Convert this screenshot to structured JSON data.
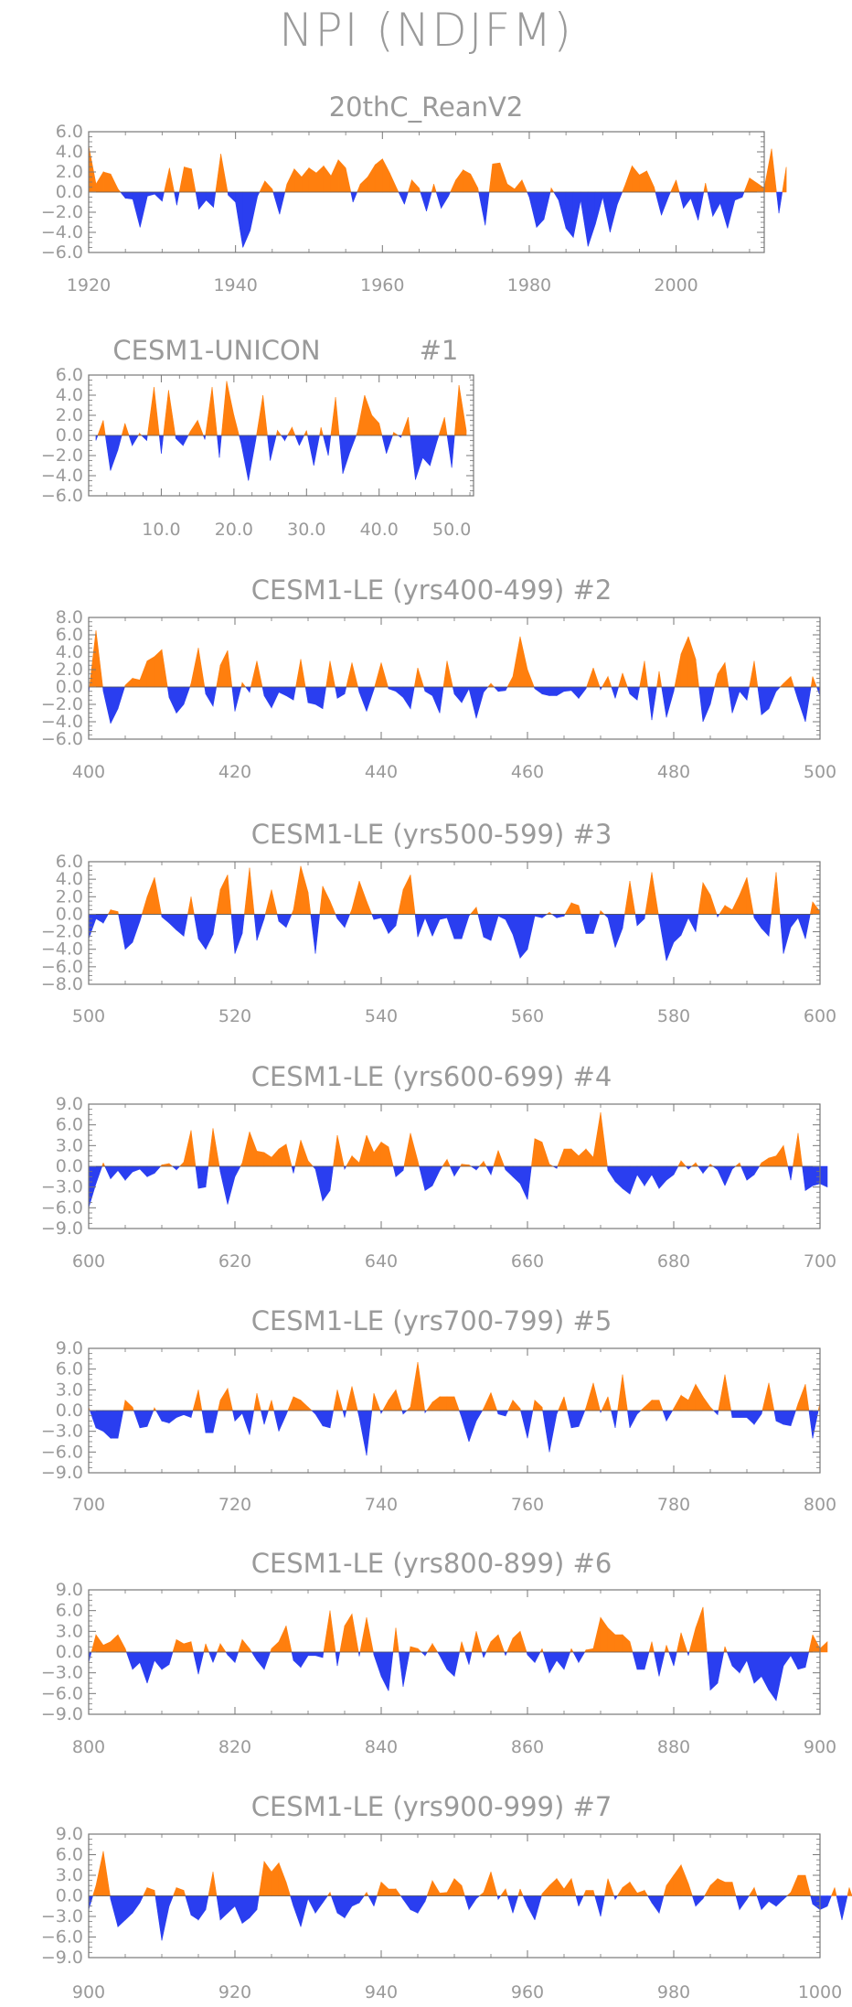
{
  "title": "NPI (NDJFM)",
  "colors": {
    "positive": "#ff7f0e",
    "negative": "#2a3ef0",
    "frame": "#777777",
    "text": "#9a9a9a"
  },
  "chart_data": [
    {
      "type": "area",
      "title": "20thC_ReanV2",
      "x_start": 1920,
      "x_step": 1,
      "xlim": [
        1920,
        2012
      ],
      "ylim": [
        -6,
        6
      ],
      "xticks": [
        1920,
        1940,
        1960,
        1980,
        2000
      ],
      "xtick_labels": [
        "1920",
        "1940",
        "1960",
        "1980",
        "2000"
      ],
      "yticks": [
        6,
        4,
        2,
        0,
        -2,
        -4,
        -6
      ],
      "ytick_labels": [
        "6.0",
        "4.0",
        "2.0",
        "0.0",
        "−2.0",
        "−4.0",
        "−6.0"
      ],
      "values": [
        4.6,
        0.8,
        2.0,
        1.8,
        0.3,
        -0.6,
        -0.7,
        -3.5,
        -0.4,
        -0.2,
        -0.9,
        2.4,
        -1.3,
        2.5,
        2.3,
        -1.7,
        -0.8,
        -1.5,
        3.8,
        -0.3,
        -1.0,
        -5.5,
        -3.8,
        -0.4,
        1.1,
        0.3,
        -2.2,
        0.8,
        2.3,
        1.5,
        2.4,
        1.9,
        2.6,
        1.6,
        3.2,
        2.4,
        -1.0,
        0.8,
        1.5,
        2.7,
        3.3,
        1.9,
        0.3,
        -1.2,
        1.2,
        0.4,
        -1.9,
        0.8,
        -1.6,
        -0.4,
        1.2,
        2.2,
        1.8,
        0.4,
        -3.3,
        2.8,
        2.9,
        0.8,
        0.3,
        1.2,
        -0.5,
        -3.5,
        -2.7,
        0.4,
        -0.8,
        -3.6,
        -4.5,
        -0.8,
        -5.4,
        -3.2,
        -0.5,
        -4.0,
        -1.2,
        0.6,
        2.6,
        1.7,
        2.1,
        0.5,
        -2.3,
        -0.4,
        1.2,
        -1.6,
        -0.6,
        -2.8,
        0.9,
        -2.4,
        -1.1,
        -3.6,
        -0.8,
        -0.5,
        1.4,
        0.9,
        0.4,
        4.3,
        -2.1,
        2.5
      ]
    },
    {
      "type": "area",
      "title": "CESM1-UNICON",
      "run_label": "#1",
      "x_start": 1,
      "x_step": 1,
      "xlim": [
        0,
        53
      ],
      "ylim": [
        -6,
        6
      ],
      "xticks": [
        10,
        20,
        30,
        40,
        50
      ],
      "xtick_labels": [
        "10.0",
        "20.0",
        "30.0",
        "40.0",
        "50.0"
      ],
      "yticks": [
        6,
        4,
        2,
        0,
        -2,
        -4,
        -6
      ],
      "ytick_labels": [
        "6.0",
        "4.0",
        "2.0",
        "0.0",
        "−2.0",
        "−4.0",
        "−6.0"
      ],
      "values": [
        -0.5,
        1.5,
        -3.5,
        -1.5,
        1.2,
        -1.0,
        0.2,
        -0.5,
        4.8,
        -1.8,
        4.5,
        -0.3,
        -1.0,
        0.4,
        1.5,
        -0.4,
        4.8,
        -2.2,
        5.4,
        2.0,
        -0.8,
        -4.5,
        -0.5,
        4.0,
        -2.5,
        0.5,
        -0.5,
        0.8,
        -1.0,
        0.5,
        -3.0,
        0.8,
        -2.0,
        3.8,
        -3.8,
        -1.6,
        0.3,
        4.0,
        2.0,
        1.2,
        -1.8,
        0.3,
        -0.2,
        1.8,
        -4.4,
        -2.2,
        -3.0,
        -0.5,
        1.8,
        -3.2,
        5.0,
        0.5
      ]
    },
    {
      "type": "area",
      "title": "CESM1-LE (yrs400-499)",
      "run_label": "#2",
      "x_start": 400,
      "x_step": 1,
      "xlim": [
        400,
        500
      ],
      "ylim": [
        -6,
        8
      ],
      "xticks": [
        400,
        420,
        440,
        460,
        480,
        500
      ],
      "xtick_labels": [
        "400",
        "420",
        "440",
        "460",
        "480",
        "500"
      ],
      "yticks": [
        8,
        6,
        4,
        2,
        0,
        -2,
        -4,
        -6
      ],
      "ytick_labels": [
        "8.0",
        "6.0",
        "4.0",
        "2.0",
        "0.0",
        "−2.0",
        "−4.0",
        "−6.0"
      ],
      "values": [
        -0.8,
        6.5,
        -0.5,
        -4.2,
        -2.5,
        0.2,
        1.0,
        0.8,
        3.0,
        3.5,
        4.3,
        -1.2,
        -3.0,
        -2.0,
        0.4,
        4.5,
        -0.8,
        -2.2,
        2.5,
        4.2,
        -2.8,
        0.5,
        -0.6,
        3.0,
        -1.0,
        -2.4,
        -0.6,
        -1.0,
        -1.5,
        3.2,
        -1.8,
        -2.0,
        -2.5,
        3.0,
        -1.3,
        -0.8,
        2.8,
        -0.6,
        -2.8,
        -0.3,
        2.8,
        -0.2,
        -0.5,
        -1.2,
        -2.5,
        2.2,
        -0.5,
        -1.0,
        -3.0,
        3.0,
        -0.8,
        -1.8,
        -0.2,
        -3.6,
        -0.6,
        0.4,
        -0.5,
        -0.4,
        1.2,
        5.8,
        2.0,
        -0.2,
        -0.8,
        -1.0,
        -1.0,
        -0.5,
        -0.4,
        -1.3,
        -0.2,
        2.2,
        -0.3,
        1.2,
        -1.3,
        1.6,
        -0.8,
        -1.5,
        3.0,
        -3.8,
        1.8,
        -3.5,
        -0.5,
        3.8,
        5.8,
        3.2,
        -4.0,
        -2.0,
        1.5,
        2.8,
        -3.0,
        -0.5,
        -1.5,
        3.0,
        -3.2,
        -2.5,
        -0.5,
        0.4,
        1.2,
        -1.5,
        -4.0,
        1.2,
        -1.0
      ]
    },
    {
      "type": "area",
      "title": "CESM1-LE (yrs500-599)",
      "run_label": "#3",
      "x_start": 500,
      "x_step": 1,
      "xlim": [
        500,
        600
      ],
      "ylim": [
        -8,
        6
      ],
      "xticks": [
        500,
        520,
        540,
        560,
        580,
        600
      ],
      "xtick_labels": [
        "500",
        "520",
        "540",
        "560",
        "580",
        "600"
      ],
      "yticks": [
        6,
        4,
        2,
        0,
        -2,
        -4,
        -6,
        -8
      ],
      "ytick_labels": [
        "6.0",
        "4.0",
        "2.0",
        "0.0",
        "−2.0",
        "−4.0",
        "−6.0",
        "−8.0"
      ],
      "values": [
        -2.8,
        -0.5,
        -1.0,
        0.5,
        0.3,
        -4.0,
        -3.2,
        -0.8,
        2.0,
        4.2,
        -0.3,
        -1.0,
        -1.8,
        -2.5,
        2.0,
        -2.8,
        -4.0,
        -2.3,
        2.8,
        4.5,
        -4.5,
        -2.2,
        5.3,
        -3.0,
        -0.5,
        2.8,
        -0.8,
        -1.5,
        0.5,
        5.5,
        2.5,
        -4.5,
        3.2,
        1.5,
        -0.5,
        -1.5,
        0.6,
        3.8,
        1.5,
        -0.6,
        -0.4,
        -2.2,
        -1.3,
        2.8,
        4.5,
        -2.6,
        -0.4,
        -2.5,
        -0.6,
        -0.4,
        -2.8,
        -2.8,
        -0.2,
        0.8,
        -2.6,
        -3.0,
        -0.2,
        -0.6,
        -2.3,
        -5.0,
        -4.0,
        -0.2,
        -0.4,
        0.2,
        -0.4,
        -0.2,
        1.3,
        1.0,
        -2.2,
        -2.2,
        0.4,
        -0.4,
        -3.8,
        -1.6,
        3.8,
        -1.3,
        -0.5,
        4.8,
        -0.5,
        -5.3,
        -3.2,
        -2.4,
        -0.4,
        -2.0,
        3.6,
        2.2,
        -0.3,
        1.0,
        0.5,
        2.2,
        4.2,
        -0.4,
        -1.6,
        -2.5,
        4.8,
        -4.5,
        -1.5,
        -0.4,
        -2.8,
        1.4,
        0.3
      ]
    },
    {
      "type": "area",
      "title": "CESM1-LE (yrs600-699)",
      "run_label": "#4",
      "x_start": 600,
      "x_step": 1,
      "xlim": [
        600,
        700
      ],
      "ylim": [
        -9,
        9
      ],
      "xticks": [
        600,
        620,
        640,
        660,
        680,
        700
      ],
      "xtick_labels": [
        "600",
        "620",
        "640",
        "660",
        "680",
        "700"
      ],
      "yticks": [
        9,
        6,
        3,
        0,
        -3,
        -6,
        -9
      ],
      "ytick_labels": [
        "9.0",
        "6.0",
        "3.0",
        "0.0",
        "−3.0",
        "−6.0",
        "−9.0"
      ],
      "values": [
        -6.0,
        -2.5,
        0.5,
        -1.8,
        -0.6,
        -2.0,
        -0.8,
        -0.4,
        -1.5,
        -1.0,
        0.2,
        0.4,
        -0.5,
        0.6,
        5.2,
        -3.2,
        -3.0,
        5.5,
        -0.8,
        -5.5,
        -1.5,
        0.5,
        5.0,
        2.2,
        2.0,
        1.3,
        2.5,
        3.2,
        -1.0,
        3.8,
        0.8,
        -0.4,
        -5.0,
        -3.5,
        4.5,
        -0.4,
        1.5,
        0.5,
        4.5,
        2.0,
        3.5,
        2.8,
        -1.5,
        -0.6,
        4.8,
        0.8,
        -3.5,
        -2.8,
        -0.6,
        1.0,
        -1.4,
        0.3,
        0.2,
        -0.5,
        0.7,
        -1.2,
        2.3,
        -0.5,
        -1.5,
        -2.5,
        -4.8,
        4.0,
        3.5,
        0.3,
        -0.3,
        2.5,
        2.5,
        1.5,
        2.5,
        1.3,
        7.8,
        -0.6,
        -2.2,
        -3.2,
        -4.0,
        -1.2,
        -2.8,
        -1.2,
        -3.2,
        -2.0,
        -1.2,
        0.8,
        -0.4,
        0.5,
        -1.0,
        0.3,
        -0.5,
        -2.8,
        -0.4,
        0.5,
        -2.0,
        -1.2,
        0.5,
        1.2,
        1.5,
        3.0,
        -2.0,
        4.8,
        -3.5,
        -2.8,
        -2.5,
        -3.0
      ]
    },
    {
      "type": "area",
      "title": "CESM1-LE (yrs700-799)",
      "run_label": "#5",
      "x_start": 700,
      "x_step": 1,
      "xlim": [
        700,
        800
      ],
      "ylim": [
        -9,
        9
      ],
      "xticks": [
        700,
        720,
        740,
        760,
        780,
        800
      ],
      "xtick_labels": [
        "700",
        "720",
        "740",
        "760",
        "780",
        "800"
      ],
      "yticks": [
        9,
        6,
        3,
        0,
        -3,
        -6,
        -9
      ],
      "ytick_labels": [
        "9.0",
        "6.0",
        "3.0",
        "0.0",
        "−3.0",
        "−6.0",
        "−9.0"
      ],
      "values": [
        0.5,
        -2.5,
        -3.0,
        -4.0,
        -4.0,
        1.5,
        0.5,
        -2.5,
        -2.3,
        0.4,
        -1.5,
        -1.8,
        -1.0,
        -0.6,
        -1.0,
        3.0,
        -3.2,
        -3.2,
        1.5,
        3.2,
        -1.5,
        -0.4,
        -3.5,
        2.5,
        -2.0,
        1.5,
        -3.0,
        -0.6,
        2.0,
        1.5,
        0.5,
        -0.5,
        -2.2,
        -2.5,
        3.0,
        -1.0,
        3.5,
        -1.0,
        -6.5,
        2.5,
        -0.4,
        1.5,
        3.0,
        -0.5,
        0.5,
        7.0,
        -0.3,
        1.2,
        2.0,
        2.0,
        2.0,
        -1.0,
        -4.5,
        -1.5,
        0.3,
        2.6,
        -0.5,
        -0.8,
        1.5,
        0.3,
        -4.0,
        1.5,
        0.5,
        -6.0,
        -0.5,
        2.0,
        -2.5,
        -2.3,
        0.4,
        4.0,
        -0.3,
        2.0,
        -2.5,
        5.2,
        -2.5,
        -0.5,
        0.5,
        1.5,
        1.5,
        -1.5,
        0.3,
        2.2,
        1.5,
        3.8,
        2.0,
        0.5,
        -0.6,
        5.2,
        -1.0,
        -1.0,
        -1.0,
        -2.0,
        -0.5,
        4.0,
        -1.5,
        -2.0,
        -2.2,
        1.0,
        3.8,
        -4.0,
        1.2
      ]
    },
    {
      "type": "area",
      "title": "CESM1-LE (yrs800-899)",
      "run_label": "#6",
      "x_start": 800,
      "x_step": 1,
      "xlim": [
        800,
        900
      ],
      "ylim": [
        -9,
        9
      ],
      "xticks": [
        800,
        820,
        840,
        860,
        880,
        900
      ],
      "xtick_labels": [
        "800",
        "820",
        "840",
        "860",
        "880",
        "900"
      ],
      "yticks": [
        9,
        6,
        3,
        0,
        -3,
        -6,
        -9
      ],
      "ytick_labels": [
        "9.0",
        "6.0",
        "3.0",
        "0.0",
        "−3.0",
        "−6.0",
        "−9.0"
      ],
      "values": [
        -1.5,
        2.5,
        1.0,
        1.5,
        2.5,
        0.5,
        -2.5,
        -1.5,
        -4.5,
        -1.2,
        -2.5,
        -1.8,
        1.8,
        1.2,
        1.5,
        -3.2,
        1.2,
        -1.5,
        1.2,
        -0.4,
        -1.5,
        1.8,
        0.5,
        -1.2,
        -2.5,
        0.5,
        1.5,
        3.8,
        -1.2,
        -2.2,
        -0.5,
        -0.5,
        -0.8,
        6.0,
        -2.0,
        3.8,
        5.5,
        -0.6,
        5.0,
        -0.4,
        -3.5,
        -5.6,
        3.5,
        -5.0,
        0.8,
        0.5,
        -0.5,
        1.2,
        -0.5,
        -2.5,
        -3.5,
        1.5,
        -1.8,
        3.0,
        -0.8,
        1.5,
        2.5,
        -0.5,
        2.0,
        3.0,
        -0.4,
        -1.5,
        0.5,
        -3.0,
        -1.2,
        -2.5,
        0.5,
        -1.5,
        0.3,
        0.5,
        5.0,
        3.5,
        2.5,
        2.5,
        1.5,
        -2.5,
        -2.5,
        1.5,
        -3.5,
        1.0,
        -2.0,
        2.8,
        -0.5,
        3.5,
        6.5,
        -5.5,
        -4.5,
        0.8,
        -2.0,
        -3.0,
        -1.2,
        -4.5,
        -3.5,
        -5.5,
        -7.0,
        -2.0,
        -0.5,
        -2.5,
        -2.2,
        2.5,
        0.5,
        1.5
      ]
    },
    {
      "type": "area",
      "title": "CESM1-LE (yrs900-999)",
      "run_label": "#7",
      "x_start": 900,
      "x_step": 1,
      "xlim": [
        900,
        1000
      ],
      "ylim": [
        -9,
        9
      ],
      "xticks": [
        900,
        920,
        940,
        960,
        980,
        1000
      ],
      "xtick_labels": [
        "900",
        "920",
        "940",
        "960",
        "980",
        "1000"
      ],
      "yticks": [
        9,
        6,
        3,
        0,
        -3,
        -6,
        -9
      ],
      "ytick_labels": [
        "9.0",
        "6.0",
        "3.0",
        "0.0",
        "−3.0",
        "−6.0",
        "−9.0"
      ],
      "values": [
        -2.0,
        1.5,
        6.5,
        -0.5,
        -4.5,
        -3.5,
        -2.5,
        -1.0,
        1.2,
        0.8,
        -6.5,
        -1.5,
        1.2,
        0.8,
        -2.8,
        -3.5,
        -2.0,
        3.5,
        -3.5,
        -2.5,
        -1.5,
        -4.0,
        -3.2,
        -2.0,
        5.0,
        3.5,
        4.8,
        2.0,
        -1.5,
        -4.5,
        -0.4,
        -2.5,
        -1.0,
        0.5,
        -2.5,
        -3.2,
        -1.5,
        -1.0,
        0.5,
        -1.5,
        2.0,
        1.0,
        1.0,
        -0.5,
        -2.0,
        -2.5,
        -0.8,
        2.2,
        0.4,
        0.5,
        2.5,
        1.5,
        -2.0,
        -0.4,
        0.5,
        3.5,
        -0.5,
        1.0,
        -2.5,
        1.0,
        -1.5,
        -3.5,
        0.3,
        1.5,
        2.5,
        1.0,
        2.5,
        -1.5,
        0.8,
        0.8,
        -3.0,
        2.5,
        -0.5,
        1.2,
        2.0,
        0.4,
        0.8,
        -1.0,
        -2.5,
        1.5,
        3.0,
        4.5,
        1.8,
        -1.5,
        -0.4,
        1.5,
        2.5,
        2.0,
        2.0,
        -2.0,
        -0.5,
        1.2,
        -2.0,
        -0.8,
        -1.5,
        -0.5,
        0.5,
        3.0,
        3.0,
        -1.2,
        -2.0,
        -1.5,
        1.2,
        -3.5,
        1.2,
        -2.0
      ]
    }
  ]
}
